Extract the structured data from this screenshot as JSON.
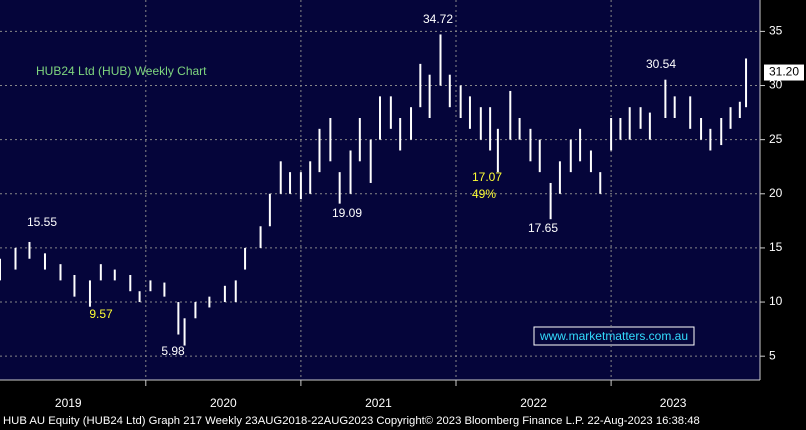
{
  "chart_data": {
    "type": "range_bar",
    "title": "HUB24 Ltd (HUB) Weekly Chart",
    "footer": "HUB AU Equity (HUB24 Ltd) Graph 217  Weekly 23AUG2018-22AUG2023 Copyright© 2023 Bloomberg Finance L.P. 22-Aug-2023 16:38:48",
    "watermark": "www.marketmatters.com.au",
    "color": "#ffffff",
    "x": [
      2019.06,
      2019.16,
      2019.25,
      2019.35,
      2019.45,
      2019.54,
      2019.64,
      2019.71,
      2019.8,
      2019.9,
      2019.96,
      2020.03,
      2020.12,
      2020.21,
      2020.25,
      2020.32,
      2020.41,
      2020.51,
      2020.58,
      2020.64,
      2020.74,
      2020.8,
      2020.87,
      2020.93,
      2021.0,
      2021.06,
      2021.12,
      2021.19,
      2021.25,
      2021.32,
      2021.38,
      2021.45,
      2021.51,
      2021.58,
      2021.64,
      2021.71,
      2021.77,
      2021.83,
      2021.9,
      2021.96,
      2022.03,
      2022.09,
      2022.16,
      2022.22,
      2022.27,
      2022.35,
      2022.41,
      2022.48,
      2022.54,
      2022.61,
      2022.67,
      2022.74,
      2022.8,
      2022.87,
      2022.93,
      2023.0,
      2023.06,
      2023.12,
      2023.19,
      2023.25,
      2023.35,
      2023.41,
      2023.51,
      2023.58,
      2023.64,
      2023.71,
      2023.77,
      2023.83,
      2023.87
    ],
    "high": [
      14,
      15,
      15.55,
      14.5,
      13.5,
      12.5,
      12,
      13.5,
      13,
      12.5,
      11,
      12,
      11.8,
      10,
      8.5,
      10,
      10.5,
      11.5,
      12,
      15,
      17,
      20,
      23,
      22,
      22,
      23,
      26,
      27,
      22,
      24,
      27,
      25,
      29,
      29,
      27,
      28,
      32,
      31,
      34.72,
      31,
      30,
      29,
      28,
      28,
      26,
      29.5,
      27,
      26,
      25,
      21,
      23,
      25,
      26,
      24,
      22,
      27,
      27,
      28,
      28,
      27.5,
      30.54,
      29,
      29,
      27,
      26,
      27,
      28,
      28.5,
      32.5
    ],
    "low": [
      12,
      13,
      14,
      13,
      12,
      10.5,
      9.57,
      12,
      12,
      11,
      10,
      11,
      10.5,
      7,
      5.98,
      8.5,
      9.5,
      10,
      10,
      13,
      15,
      17,
      20,
      20,
      19.5,
      20,
      22,
      23,
      19.09,
      20,
      23,
      21,
      25,
      26,
      24,
      25,
      28,
      27,
      30,
      28,
      27,
      26,
      25,
      24,
      22,
      25,
      25,
      23,
      22,
      17.65,
      20,
      22,
      23,
      22,
      20,
      24,
      25,
      25,
      26,
      25,
      27,
      27,
      26,
      25,
      24,
      24.5,
      26,
      27,
      28
    ],
    "last_price": {
      "value": 31.2,
      "label": "31.20"
    },
    "annotations": [
      {
        "text": "15.55",
        "color": "#ffffff"
      },
      {
        "text": "9.57",
        "color": "#ffff33"
      },
      {
        "text": "5.98",
        "color": "#ffffff"
      },
      {
        "text": "19.09",
        "color": "#ffffff"
      },
      {
        "text": "34.72",
        "color": "#ffffff"
      },
      {
        "text": "17.07",
        "color": "#ffff33"
      },
      {
        "text": "49%",
        "color": "#ffff33"
      },
      {
        "text": "17.65",
        "color": "#ffffff"
      },
      {
        "text": "30.54",
        "color": "#ffffff"
      }
    ],
    "xlim": [
      2019.06,
      2023.96
    ],
    "xgrid": [
      2020,
      2021,
      2022,
      2023
    ],
    "xticks": [
      {
        "value": 2019.5,
        "label": "2019"
      },
      {
        "value": 2020.5,
        "label": "2020"
      },
      {
        "value": 2021.5,
        "label": "2021"
      },
      {
        "value": 2022.5,
        "label": "2022"
      },
      {
        "value": 2023.4,
        "label": "2023"
      }
    ],
    "ylim": [
      2.8,
      37.9
    ],
    "yticks": [
      5,
      10,
      15,
      20,
      25,
      30,
      35
    ],
    "grid": true
  }
}
